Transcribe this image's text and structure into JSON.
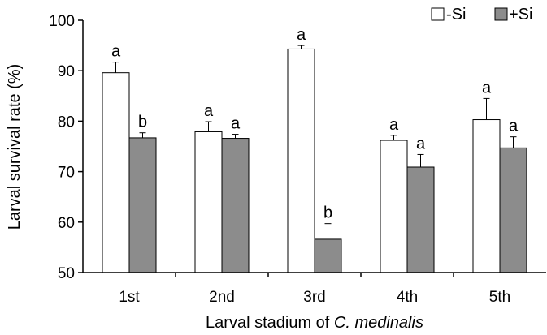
{
  "chart_data": {
    "type": "bar",
    "categories": [
      "1st",
      "2nd",
      "3rd",
      "4th",
      "5th"
    ],
    "series": [
      {
        "name": "-Si",
        "color": "#ffffff",
        "values": [
          89.6,
          77.9,
          94.3,
          76.2,
          80.3
        ],
        "errors": [
          2.1,
          2.0,
          0.7,
          1.0,
          4.2
        ],
        "letters": [
          "a",
          "a",
          "a",
          "a",
          "a"
        ]
      },
      {
        "name": "+Si",
        "color": "#8c8c8c",
        "values": [
          76.7,
          76.6,
          56.6,
          70.9,
          74.7
        ],
        "errors": [
          1.0,
          0.8,
          3.1,
          2.5,
          2.2
        ],
        "letters": [
          "b",
          "a",
          "b",
          "a",
          "a"
        ]
      }
    ],
    "ylabel": "Larval survival rate (%)",
    "xlabel_prefix": "Larval stadium of ",
    "xlabel_italic": "C. medinalis",
    "ylim": [
      50,
      100
    ],
    "yticks": [
      50,
      60,
      70,
      80,
      90,
      100
    ],
    "grid": false,
    "legend": "top-right"
  }
}
